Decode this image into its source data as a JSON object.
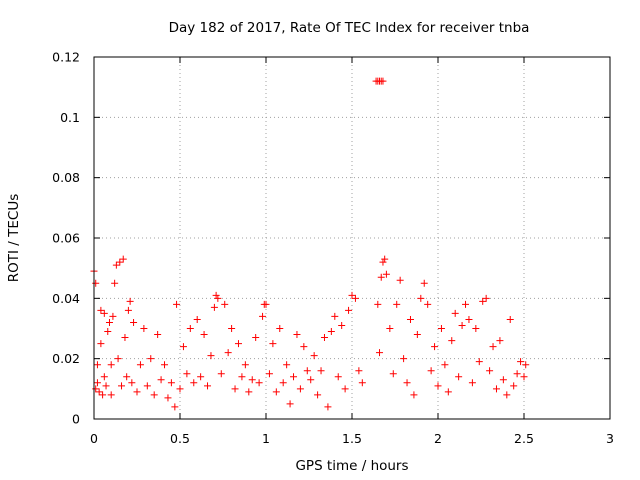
{
  "chart_data": {
    "type": "scatter",
    "title": "Day 182 of 2017, Rate Of TEC Index for receiver tnba",
    "xlabel": "GPS time / hours",
    "ylabel": "ROTI / TECUs",
    "xlim": [
      0,
      3
    ],
    "ylim": [
      0,
      0.12
    ],
    "xticks": [
      "0",
      "0.5",
      "1",
      "1.5",
      "2",
      "2.5",
      "3"
    ],
    "yticks": [
      "0",
      "0.02",
      "0.04",
      "0.06",
      "0.08",
      "0.1",
      "0.12"
    ],
    "grid": true,
    "marker": "+",
    "color": "#ff0000",
    "series": [
      {
        "name": "",
        "points": [
          [
            0.0,
            0.049
          ],
          [
            0.01,
            0.045
          ],
          [
            0.01,
            0.01
          ],
          [
            0.02,
            0.012
          ],
          [
            0.02,
            0.018
          ],
          [
            0.03,
            0.009
          ],
          [
            0.04,
            0.025
          ],
          [
            0.04,
            0.036
          ],
          [
            0.05,
            0.008
          ],
          [
            0.06,
            0.014
          ],
          [
            0.06,
            0.035
          ],
          [
            0.07,
            0.011
          ],
          [
            0.08,
            0.029
          ],
          [
            0.09,
            0.032
          ],
          [
            0.1,
            0.008
          ],
          [
            0.1,
            0.018
          ],
          [
            0.11,
            0.034
          ],
          [
            0.12,
            0.045
          ],
          [
            0.13,
            0.051
          ],
          [
            0.14,
            0.02
          ],
          [
            0.15,
            0.052
          ],
          [
            0.16,
            0.011
          ],
          [
            0.17,
            0.053
          ],
          [
            0.18,
            0.027
          ],
          [
            0.19,
            0.014
          ],
          [
            0.2,
            0.036
          ],
          [
            0.21,
            0.039
          ],
          [
            0.22,
            0.012
          ],
          [
            0.23,
            0.032
          ],
          [
            0.25,
            0.009
          ],
          [
            0.27,
            0.018
          ],
          [
            0.29,
            0.03
          ],
          [
            0.31,
            0.011
          ],
          [
            0.33,
            0.02
          ],
          [
            0.35,
            0.008
          ],
          [
            0.37,
            0.028
          ],
          [
            0.39,
            0.013
          ],
          [
            0.41,
            0.018
          ],
          [
            0.43,
            0.007
          ],
          [
            0.45,
            0.012
          ],
          [
            0.47,
            0.004
          ],
          [
            0.48,
            0.038
          ],
          [
            0.5,
            0.01
          ],
          [
            0.52,
            0.024
          ],
          [
            0.54,
            0.015
          ],
          [
            0.56,
            0.03
          ],
          [
            0.58,
            0.012
          ],
          [
            0.6,
            0.033
          ],
          [
            0.62,
            0.014
          ],
          [
            0.64,
            0.028
          ],
          [
            0.66,
            0.011
          ],
          [
            0.68,
            0.021
          ],
          [
            0.7,
            0.037
          ],
          [
            0.71,
            0.041
          ],
          [
            0.72,
            0.04
          ],
          [
            0.74,
            0.015
          ],
          [
            0.76,
            0.038
          ],
          [
            0.78,
            0.022
          ],
          [
            0.8,
            0.03
          ],
          [
            0.82,
            0.01
          ],
          [
            0.84,
            0.025
          ],
          [
            0.86,
            0.014
          ],
          [
            0.88,
            0.018
          ],
          [
            0.9,
            0.009
          ],
          [
            0.92,
            0.013
          ],
          [
            0.94,
            0.027
          ],
          [
            0.96,
            0.012
          ],
          [
            0.98,
            0.034
          ],
          [
            0.99,
            0.038
          ],
          [
            1.0,
            0.038
          ],
          [
            1.02,
            0.015
          ],
          [
            1.04,
            0.025
          ],
          [
            1.06,
            0.009
          ],
          [
            1.08,
            0.03
          ],
          [
            1.1,
            0.012
          ],
          [
            1.12,
            0.018
          ],
          [
            1.14,
            0.005
          ],
          [
            1.16,
            0.014
          ],
          [
            1.18,
            0.028
          ],
          [
            1.2,
            0.01
          ],
          [
            1.22,
            0.024
          ],
          [
            1.24,
            0.016
          ],
          [
            1.26,
            0.013
          ],
          [
            1.28,
            0.021
          ],
          [
            1.3,
            0.008
          ],
          [
            1.32,
            0.016
          ],
          [
            1.34,
            0.027
          ],
          [
            1.36,
            0.004
          ],
          [
            1.38,
            0.029
          ],
          [
            1.4,
            0.034
          ],
          [
            1.42,
            0.014
          ],
          [
            1.44,
            0.031
          ],
          [
            1.46,
            0.01
          ],
          [
            1.48,
            0.036
          ],
          [
            1.5,
            0.041
          ],
          [
            1.52,
            0.04
          ],
          [
            1.54,
            0.016
          ],
          [
            1.56,
            0.012
          ],
          [
            1.64,
            0.112
          ],
          [
            1.65,
            0.112
          ],
          [
            1.66,
            0.112
          ],
          [
            1.67,
            0.112
          ],
          [
            1.68,
            0.112
          ],
          [
            1.65,
            0.038
          ],
          [
            1.66,
            0.022
          ],
          [
            1.67,
            0.047
          ],
          [
            1.68,
            0.052
          ],
          [
            1.69,
            0.053
          ],
          [
            1.7,
            0.048
          ],
          [
            1.72,
            0.03
          ],
          [
            1.74,
            0.015
          ],
          [
            1.76,
            0.038
          ],
          [
            1.78,
            0.046
          ],
          [
            1.8,
            0.02
          ],
          [
            1.82,
            0.012
          ],
          [
            1.84,
            0.033
          ],
          [
            1.86,
            0.008
          ],
          [
            1.88,
            0.028
          ],
          [
            1.9,
            0.04
          ],
          [
            1.92,
            0.045
          ],
          [
            1.94,
            0.038
          ],
          [
            1.96,
            0.016
          ],
          [
            1.98,
            0.024
          ],
          [
            2.0,
            0.011
          ],
          [
            2.02,
            0.03
          ],
          [
            2.04,
            0.018
          ],
          [
            2.06,
            0.009
          ],
          [
            2.08,
            0.026
          ],
          [
            2.1,
            0.035
          ],
          [
            2.12,
            0.014
          ],
          [
            2.14,
            0.031
          ],
          [
            2.16,
            0.038
          ],
          [
            2.18,
            0.033
          ],
          [
            2.2,
            0.012
          ],
          [
            2.22,
            0.03
          ],
          [
            2.24,
            0.019
          ],
          [
            2.26,
            0.039
          ],
          [
            2.28,
            0.04
          ],
          [
            2.3,
            0.016
          ],
          [
            2.32,
            0.024
          ],
          [
            2.34,
            0.01
          ],
          [
            2.36,
            0.026
          ],
          [
            2.38,
            0.013
          ],
          [
            2.4,
            0.008
          ],
          [
            2.42,
            0.033
          ],
          [
            2.44,
            0.011
          ],
          [
            2.46,
            0.015
          ],
          [
            2.48,
            0.019
          ],
          [
            2.5,
            0.014
          ],
          [
            2.51,
            0.018
          ]
        ]
      }
    ]
  }
}
